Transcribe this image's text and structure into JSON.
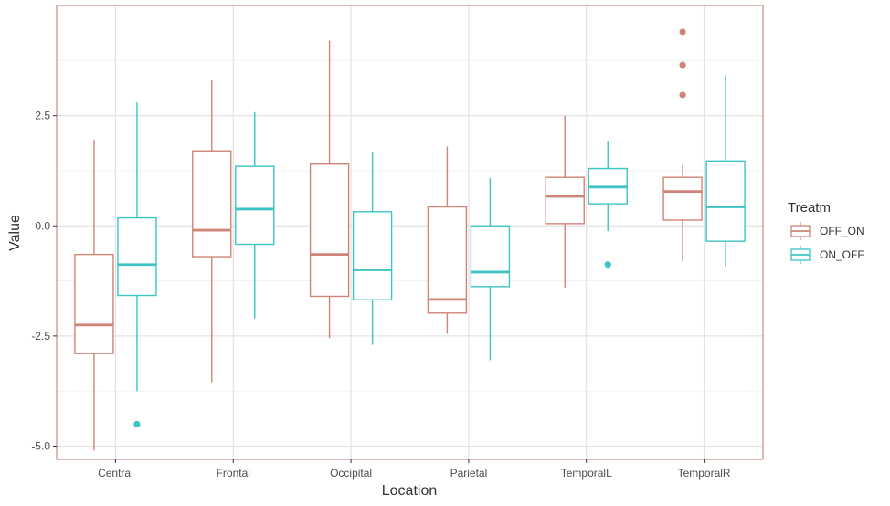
{
  "chart_data": {
    "type": "boxplot",
    "categories": [
      "Central",
      "Frontal",
      "Occipital",
      "Parietal",
      "TemporalL",
      "TemporalR"
    ],
    "xlabel": "Location",
    "ylabel": "Value",
    "ylim": [
      -5.3,
      5.0
    ],
    "yticks": [
      -5.0,
      -2.5,
      0.0,
      2.5
    ],
    "ytick_labels": [
      "-5.0",
      "-2.5",
      "0.0",
      "2.5"
    ],
    "grid": true,
    "legend": {
      "title": "Treatm",
      "position": "right"
    },
    "series": [
      {
        "name": "OFF_ON",
        "color": "#d08478",
        "boxes": [
          {
            "min": -5.1,
            "q1": -2.9,
            "median": -2.25,
            "q3": -0.65,
            "max": 1.95,
            "outliers": []
          },
          {
            "min": -3.55,
            "q1": -0.7,
            "median": -0.1,
            "q3": 1.7,
            "max": 3.3,
            "outliers": []
          },
          {
            "min": -2.55,
            "q1": -1.6,
            "median": -0.65,
            "q3": 1.4,
            "max": 4.2,
            "outliers": []
          },
          {
            "min": -2.45,
            "q1": -1.98,
            "median": -1.67,
            "q3": 0.43,
            "max": 1.8,
            "outliers": []
          },
          {
            "min": -1.4,
            "q1": 0.05,
            "median": 0.67,
            "q3": 1.1,
            "max": 2.5,
            "outliers": []
          },
          {
            "min": -0.8,
            "q1": 0.13,
            "median": 0.78,
            "q3": 1.1,
            "max": 1.38,
            "outliers": [
              2.97,
              3.65,
              4.4
            ]
          }
        ]
      },
      {
        "name": "ON_OFF",
        "color": "#3ec4c4",
        "boxes": [
          {
            "min": -3.75,
            "q1": -1.58,
            "median": -0.88,
            "q3": 0.18,
            "max": 2.8,
            "outliers": [
              -4.5
            ]
          },
          {
            "min": -2.1,
            "q1": -0.42,
            "median": 0.38,
            "q3": 1.35,
            "max": 2.58,
            "outliers": []
          },
          {
            "min": -2.7,
            "q1": -1.68,
            "median": -1.0,
            "q3": 0.32,
            "max": 1.68,
            "outliers": []
          },
          {
            "min": -3.05,
            "q1": -1.38,
            "median": -1.05,
            "q3": 0.0,
            "max": 1.08,
            "outliers": []
          },
          {
            "min": -0.12,
            "q1": 0.5,
            "median": 0.88,
            "q3": 1.3,
            "max": 1.93,
            "outliers": [
              -0.88
            ]
          },
          {
            "min": -0.92,
            "q1": -0.35,
            "median": 0.43,
            "q3": 1.47,
            "max": 3.42,
            "outliers": []
          }
        ]
      }
    ]
  }
}
